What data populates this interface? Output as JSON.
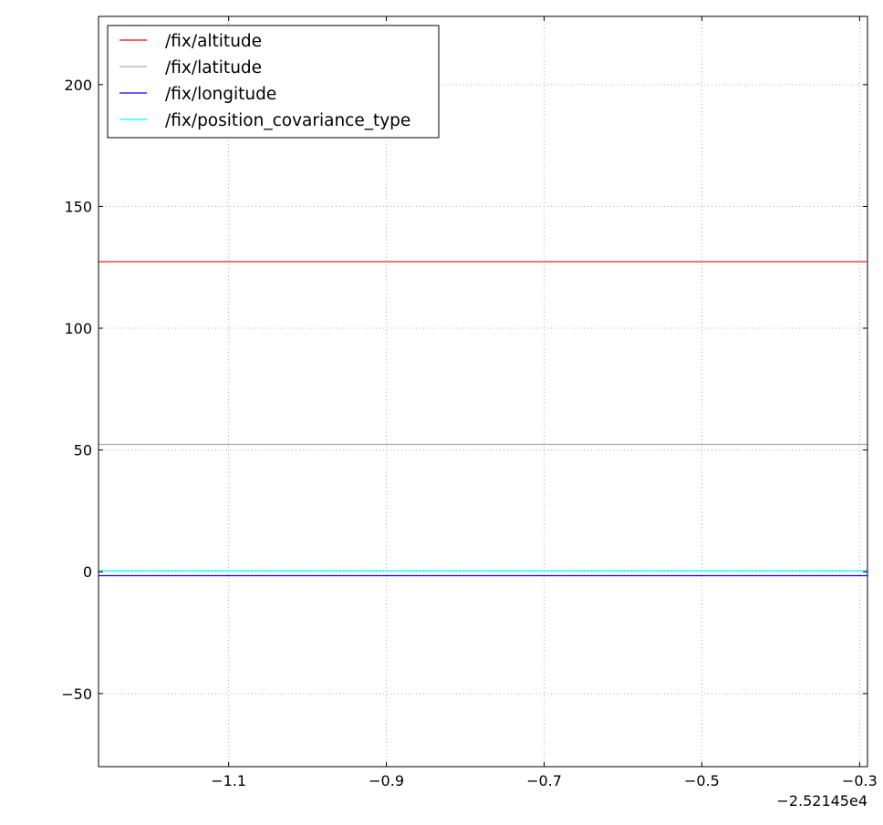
{
  "chart_data": {
    "type": "line",
    "title": "",
    "xlabel": "",
    "ylabel": "",
    "x_offset_label": "−2.52145e4",
    "xlim": [
      -1.265,
      -0.29
    ],
    "ylim": [
      -80,
      228
    ],
    "grid": true,
    "grid_style": "dotted",
    "legend_position": "top-left",
    "x_ticks": [
      {
        "value": -1.1,
        "label": "−1.1"
      },
      {
        "value": -0.9,
        "label": "−0.9"
      },
      {
        "value": -0.7,
        "label": "−0.7"
      },
      {
        "value": -0.5,
        "label": "−0.5"
      },
      {
        "value": -0.3,
        "label": "−0.3"
      }
    ],
    "y_ticks": [
      {
        "value": -50,
        "label": "−50"
      },
      {
        "value": 0,
        "label": "0"
      },
      {
        "value": 50,
        "label": "50"
      },
      {
        "value": 100,
        "label": "100"
      },
      {
        "value": 150,
        "label": "150"
      },
      {
        "value": 200,
        "label": "200"
      }
    ],
    "series": [
      {
        "name": "/fix/altitude",
        "color": "#ff0000",
        "x": [
          -1.265,
          -0.29
        ],
        "y": [
          127.3,
          127.3
        ]
      },
      {
        "name": "/fix/latitude",
        "color": "#aaaaaa",
        "x": [
          -1.265,
          -0.29
        ],
        "y": [
          52.3,
          52.3
        ]
      },
      {
        "name": "/fix/longitude",
        "color": "#0000ff",
        "x": [
          -1.265,
          -0.29
        ],
        "y": [
          -1.6,
          -1.6
        ]
      },
      {
        "name": "/fix/position_covariance_type",
        "color": "#00ffff",
        "x": [
          -1.265,
          -0.29
        ],
        "y": [
          0.4,
          0.4
        ]
      }
    ]
  }
}
